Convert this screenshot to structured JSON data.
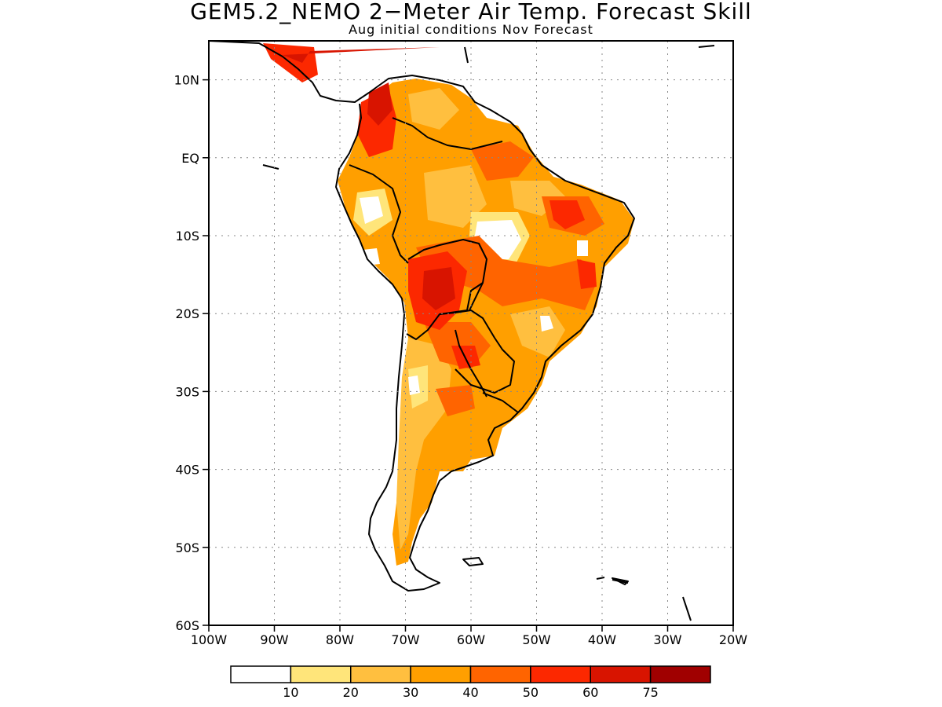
{
  "title": "GEM5.2_NEMO 2−Meter Air Temp. Forecast Skill",
  "subtitle": "Aug initial conditions  Nov Forecast",
  "map": {
    "lon_ticks": [
      "100W",
      "90W",
      "80W",
      "70W",
      "60W",
      "50W",
      "40W",
      "30W",
      "20W"
    ],
    "lat_ticks": [
      "10N",
      "EQ",
      "10S",
      "20S",
      "30S",
      "40S",
      "50S",
      "60S"
    ],
    "lon_values": [
      -100,
      -90,
      -80,
      -70,
      -60,
      -50,
      -40,
      -30,
      -20
    ],
    "lat_values": [
      10,
      0,
      -10,
      -20,
      -30,
      -40,
      -50,
      -60
    ],
    "lon_range": [
      -100,
      -20
    ],
    "lat_range": [
      -60,
      15
    ],
    "grid": "dotted"
  },
  "colorbar": {
    "bins": [
      {
        "color": "#ffffff"
      },
      {
        "color": "#ffe57a"
      },
      {
        "color": "#ffbf3f"
      },
      {
        "color": "#ff9f00"
      },
      {
        "color": "#ff6400"
      },
      {
        "color": "#fc2800"
      },
      {
        "color": "#d81400"
      },
      {
        "color": "#a00000"
      }
    ],
    "labels": [
      "10",
      "20",
      "30",
      "40",
      "50",
      "60",
      "75"
    ]
  }
}
